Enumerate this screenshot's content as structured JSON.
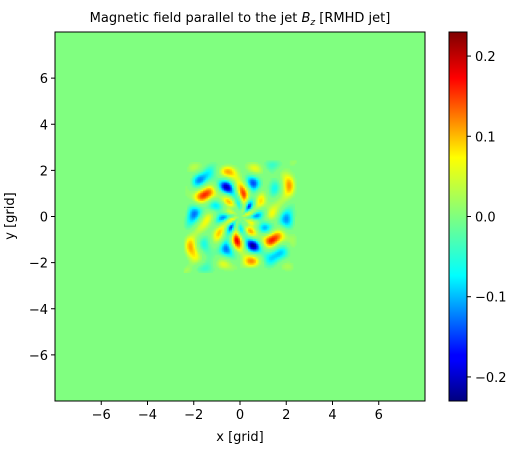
{
  "chart_data": {
    "type": "heatmap",
    "title": {
      "prefix": "Magnetic field parallel to the jet ",
      "symbol": "B",
      "subscript": "z",
      "suffix": " [RMHD jet]"
    },
    "xlabel": "x [grid]",
    "ylabel": "y [grid]",
    "xlim": [
      -8,
      8
    ],
    "ylim": [
      -8,
      8
    ],
    "xticks": [
      -6,
      -4,
      -2,
      0,
      2,
      4,
      6
    ],
    "yticks": [
      -6,
      -4,
      -2,
      0,
      2,
      4,
      6
    ],
    "xtick_labels": [
      "−6",
      "−4",
      "−2",
      "0",
      "2",
      "4",
      "6"
    ],
    "ytick_labels": [
      "−6",
      "−4",
      "−2",
      "0",
      "2",
      "4",
      "6"
    ],
    "colormap": "jet",
    "colorbar": {
      "vmin": -0.23,
      "vmax": 0.23,
      "ticks": [
        -0.2,
        -0.1,
        0.0,
        0.1,
        0.2
      ],
      "tick_labels": [
        "−0.2",
        "−0.1",
        "0.0",
        "0.1",
        "0.2"
      ]
    },
    "background_value": 0.0,
    "structure": {
      "description_region": "square",
      "region_x": [
        -2.5,
        2.5
      ],
      "region_y": [
        -2.5,
        2.5
      ],
      "value_range": [
        -0.23,
        0.23
      ]
    },
    "grid": false
  }
}
